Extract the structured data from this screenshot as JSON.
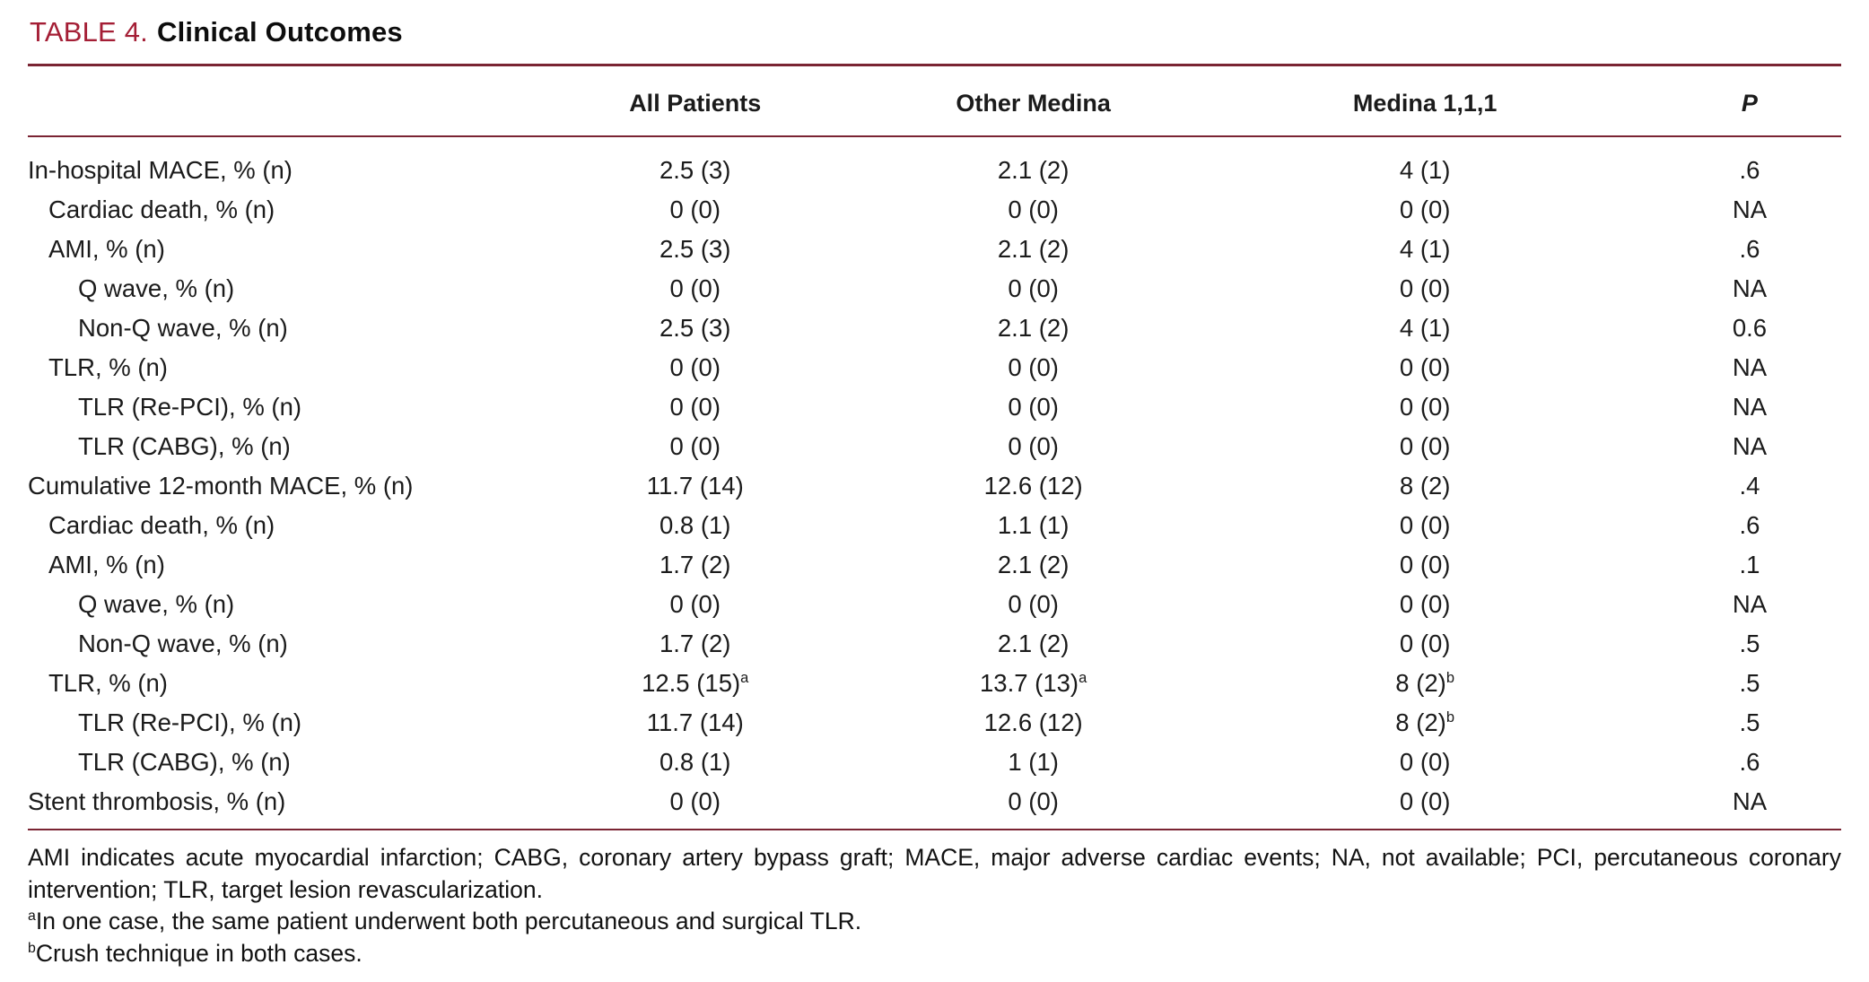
{
  "page": {
    "background": "#ffffff",
    "accent_red": "#a41e35",
    "rule_color": "#7a2433",
    "text_color": "#1b1b1b"
  },
  "title": {
    "label": "TABLE 4.",
    "text": "Clinical Outcomes"
  },
  "table": {
    "columns": [
      "All Patients",
      "Other Medina",
      "Medina 1,1,1",
      "P"
    ],
    "rows": [
      {
        "label": "In-hospital MACE, % (n)",
        "indent": 0,
        "values": [
          "2.5 (3)",
          "2.1 (2)",
          "4 (1)",
          ".6"
        ]
      },
      {
        "label": "Cardiac death, % (n)",
        "indent": 1,
        "values": [
          "0 (0)",
          "0 (0)",
          "0 (0)",
          "NA"
        ]
      },
      {
        "label": "AMI, % (n)",
        "indent": 1,
        "values": [
          "2.5 (3)",
          "2.1 (2)",
          "4 (1)",
          ".6"
        ]
      },
      {
        "label": "Q wave, % (n)",
        "indent": 2,
        "values": [
          "0 (0)",
          "0 (0)",
          "0 (0)",
          "NA"
        ]
      },
      {
        "label": "Non-Q wave, % (n)",
        "indent": 2,
        "values": [
          "2.5 (3)",
          "2.1 (2)",
          "4 (1)",
          "0.6"
        ]
      },
      {
        "label": "TLR, % (n)",
        "indent": 1,
        "values": [
          "0 (0)",
          "0 (0)",
          "0 (0)",
          "NA"
        ]
      },
      {
        "label": "TLR (Re-PCI), % (n)",
        "indent": 2,
        "values": [
          "0 (0)",
          "0 (0)",
          "0 (0)",
          "NA"
        ]
      },
      {
        "label": "TLR (CABG), % (n)",
        "indent": 2,
        "values": [
          "0 (0)",
          "0 (0)",
          "0 (0)",
          "NA"
        ]
      },
      {
        "label": "Cumulative 12-month MACE, % (n)",
        "indent": 0,
        "values": [
          "11.7 (14)",
          "12.6 (12)",
          "8 (2)",
          ".4"
        ]
      },
      {
        "label": "Cardiac death, % (n)",
        "indent": 1,
        "values": [
          "0.8 (1)",
          "1.1 (1)",
          "0 (0)",
          ".6"
        ]
      },
      {
        "label": "AMI, % (n)",
        "indent": 1,
        "values": [
          "1.7 (2)",
          "2.1 (2)",
          "0 (0)",
          ".1"
        ]
      },
      {
        "label": "Q wave, % (n)",
        "indent": 2,
        "values": [
          "0 (0)",
          "0 (0)",
          "0 (0)",
          "NA"
        ]
      },
      {
        "label": "Non-Q wave, % (n)",
        "indent": 2,
        "values": [
          "1.7 (2)",
          "2.1 (2)",
          "0 (0)",
          ".5"
        ]
      },
      {
        "label": "TLR, % (n)",
        "indent": 1,
        "values": [
          "12.5 (15)^a",
          "13.7 (13)^a",
          "8 (2)^b",
          ".5"
        ]
      },
      {
        "label": "TLR (Re-PCI), % (n)",
        "indent": 2,
        "values": [
          "11.7 (14)",
          "12.6 (12)",
          "8 (2)^b",
          ".5"
        ]
      },
      {
        "label": "TLR (CABG), % (n)",
        "indent": 2,
        "values": [
          "0.8 (1)",
          "1 (1)",
          "0 (0)",
          ".6"
        ]
      },
      {
        "label": "Stent thrombosis, % (n)",
        "indent": 0,
        "values": [
          "0 (0)",
          "0 (0)",
          "0 (0)",
          "NA"
        ]
      }
    ]
  },
  "footnotes": [
    {
      "sup": "",
      "text": "AMI indicates acute myocardial infarction; CABG, coronary artery bypass graft; MACE, major adverse cardiac events; NA, not available; PCI, percutaneous coronary intervention; TLR, target lesion revascularization."
    },
    {
      "sup": "a",
      "text": "In one case, the same patient underwent both percutaneous and surgical TLR."
    },
    {
      "sup": "b",
      "text": "Crush technique in both cases."
    }
  ]
}
